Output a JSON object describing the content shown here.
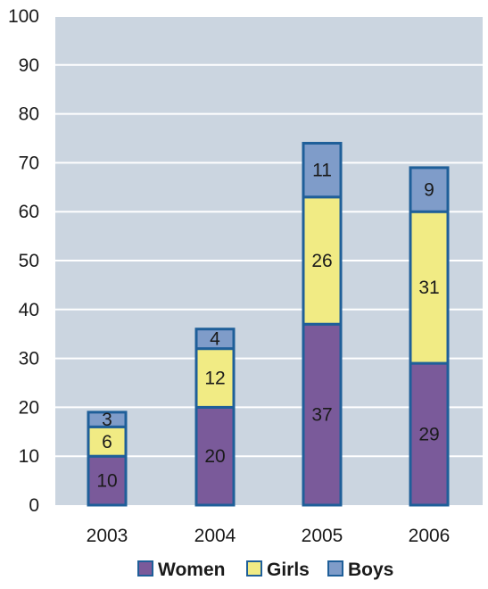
{
  "chart_data": {
    "type": "bar",
    "stacked": true,
    "categories": [
      "2003",
      "2004",
      "2005",
      "2006"
    ],
    "series": [
      {
        "name": "Women",
        "values": [
          10,
          20,
          37,
          29
        ],
        "color": "#7a5a9a"
      },
      {
        "name": "Girls",
        "values": [
          6,
          12,
          26,
          31
        ],
        "color": "#f1eb84"
      },
      {
        "name": "Boys",
        "values": [
          3,
          4,
          11,
          9
        ],
        "color": "#7f9cc9"
      }
    ],
    "ylim": [
      0,
      100
    ],
    "yticks": [
      0,
      10,
      20,
      30,
      40,
      50,
      60,
      70,
      80,
      90,
      100
    ],
    "grid": true,
    "legend_position": "bottom",
    "colors": {
      "plot_background": "#cbd5e0",
      "gridline": "#ffffff",
      "bar_outline": "#1f5f99"
    }
  }
}
